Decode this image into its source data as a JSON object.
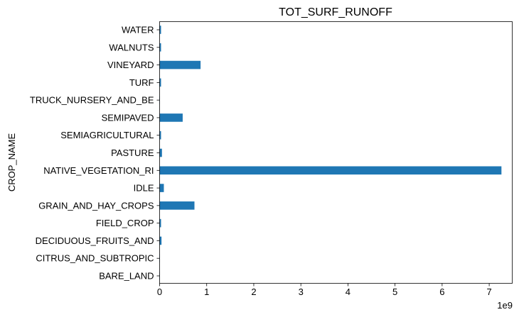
{
  "chart_data": {
    "type": "bar",
    "orientation": "horizontal",
    "title": "TOT_SURF_RUNOFF",
    "xlabel": "",
    "ylabel": "CROP_NAME",
    "x_multiplier_label": "1e9",
    "xlim": [
      0,
      7.5
    ],
    "xticks": [
      "0",
      "1",
      "2",
      "3",
      "4",
      "5",
      "6",
      "7"
    ],
    "grid": false,
    "legend": "none",
    "categories": [
      "BARE_LAND",
      "CITRUS_AND_SUBTROPIC",
      "DECIDUOUS_FRUITS_AND",
      "FIELD_CROP",
      "GRAIN_AND_HAY_CROPS",
      "IDLE",
      "NATIVE_VEGETATION_RI",
      "PASTURE",
      "SEMIAGRICULTURAL",
      "SEMIPAVED",
      "TRUCK_NURSERY_AND_BE",
      "TURF",
      "VINEYARD",
      "WALNUTS",
      "WATER"
    ],
    "values": [
      0.005,
      0.005,
      0.04,
      0.03,
      0.74,
      0.09,
      7.26,
      0.05,
      0.03,
      0.49,
      0.005,
      0.03,
      0.87,
      0.03,
      0.03
    ],
    "bar_color": "#1f77b4"
  }
}
